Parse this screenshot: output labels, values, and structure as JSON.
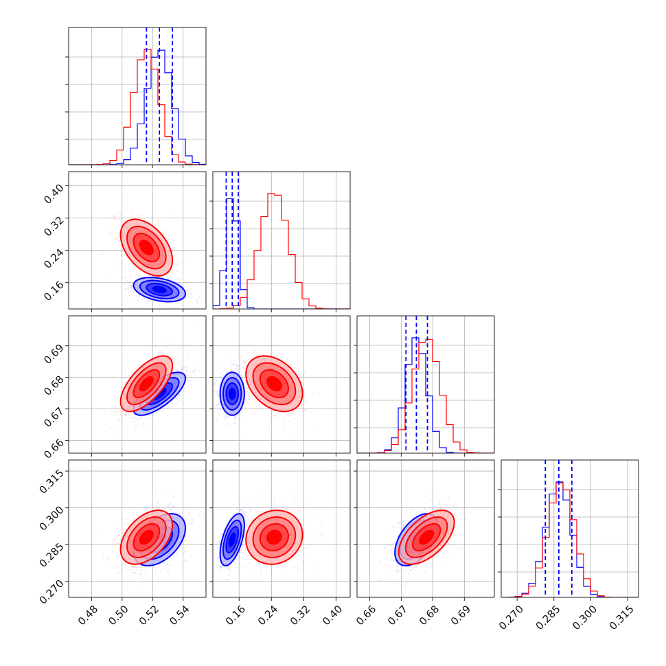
{
  "chart_data": {
    "type": "corner",
    "colors": {
      "blue": "#0000ff",
      "red": "#ff0000"
    },
    "grid": true,
    "series": [
      {
        "color": "#0000ff",
        "means": [
          0.5245,
          0.143,
          0.6748,
          0.287
        ],
        "stds": [
          0.0085,
          0.015,
          0.0034,
          0.0053
        ],
        "corr": {
          "0-1": -0.35,
          "0-2": 0.72,
          "0-3": 0.45,
          "1-2": 0.0,
          "1-3": 0.55,
          "2-3": 0.5
        },
        "quantiles": [
          [
            0.516,
            0.5245,
            0.533
          ],
          [
            0.128,
            0.143,
            0.158
          ],
          [
            0.6715,
            0.6748,
            0.6783
          ],
          [
            0.2815,
            0.287,
            0.2923
          ]
        ]
      },
      {
        "color": "#ff0000",
        "means": [
          0.516,
          0.247,
          0.678,
          0.288
        ],
        "stds": [
          0.0085,
          0.035,
          0.0044,
          0.0055
        ],
        "corr": {
          "0-1": -0.45,
          "0-2": 0.65,
          "0-3": 0.45,
          "1-2": -0.35,
          "1-3": 0.1,
          "2-3": 0.55
        }
      }
    ],
    "params": [
      {
        "range": [
          0.465,
          0.555
        ],
        "ticks": [
          0.48,
          0.5,
          0.52,
          0.54
        ],
        "labels": [
          "0.48",
          "0.50",
          "0.52",
          "0.54"
        ]
      },
      {
        "range": [
          0.095,
          0.435
        ],
        "ticks": [
          0.16,
          0.24,
          0.32,
          0.4
        ],
        "labels": [
          "0.16",
          "0.24",
          "0.32",
          "0.40"
        ]
      },
      {
        "range": [
          0.656,
          0.6995
        ],
        "ticks": [
          0.66,
          0.67,
          0.68,
          0.69
        ],
        "labels": [
          "0.66",
          "0.67",
          "0.68",
          "0.69"
        ]
      },
      {
        "range": [
          0.2635,
          0.3195
        ],
        "ticks": [
          0.27,
          0.285,
          0.3,
          0.315
        ],
        "labels": [
          "0.270",
          "0.285",
          "0.300",
          "0.315"
        ]
      }
    ]
  }
}
